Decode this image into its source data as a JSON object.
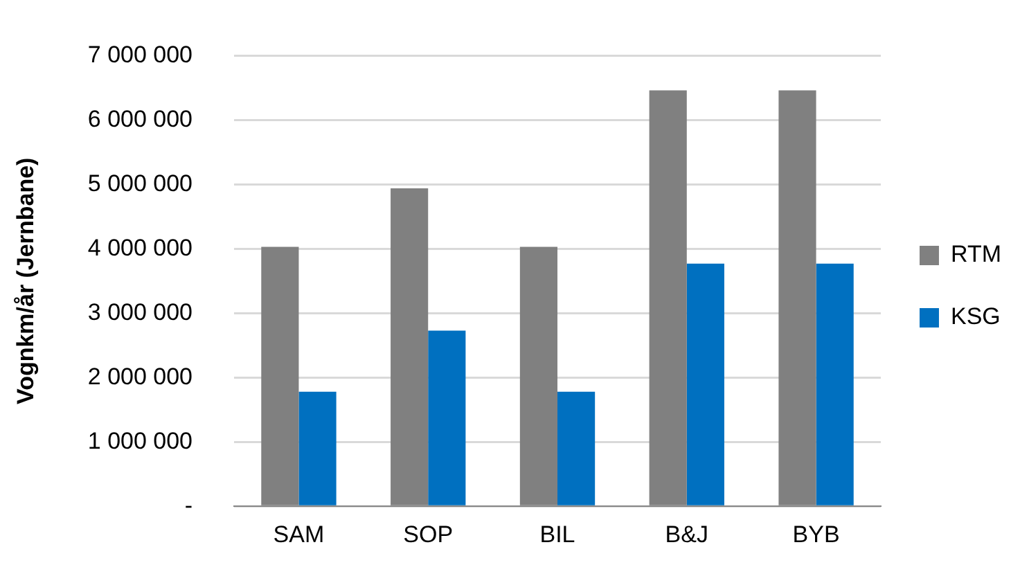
{
  "chart_data": {
    "type": "bar",
    "ylabel": "Vognkm/år (Jernbane)",
    "categories": [
      "SAM",
      "SOP",
      "BIL",
      "B&J",
      "BYB"
    ],
    "series": [
      {
        "name": "RTM",
        "color": "#808080",
        "values": [
          4030000,
          4940000,
          4030000,
          6460000,
          6460000
        ]
      },
      {
        "name": "KSG",
        "color": "#0070c0",
        "values": [
          1780000,
          2730000,
          1780000,
          3770000,
          3770000
        ]
      }
    ],
    "ylim": [
      0,
      7000000
    ],
    "yticks": [
      {
        "value": 0,
        "label": "-"
      },
      {
        "value": 1000000,
        "label": "1 000 000"
      },
      {
        "value": 2000000,
        "label": "2 000 000"
      },
      {
        "value": 3000000,
        "label": "3 000 000"
      },
      {
        "value": 4000000,
        "label": "4 000 000"
      },
      {
        "value": 5000000,
        "label": "5 000 000"
      },
      {
        "value": 6000000,
        "label": "6 000 000"
      },
      {
        "value": 7000000,
        "label": "7 000 000"
      }
    ],
    "grid": "y",
    "legend": "right"
  }
}
